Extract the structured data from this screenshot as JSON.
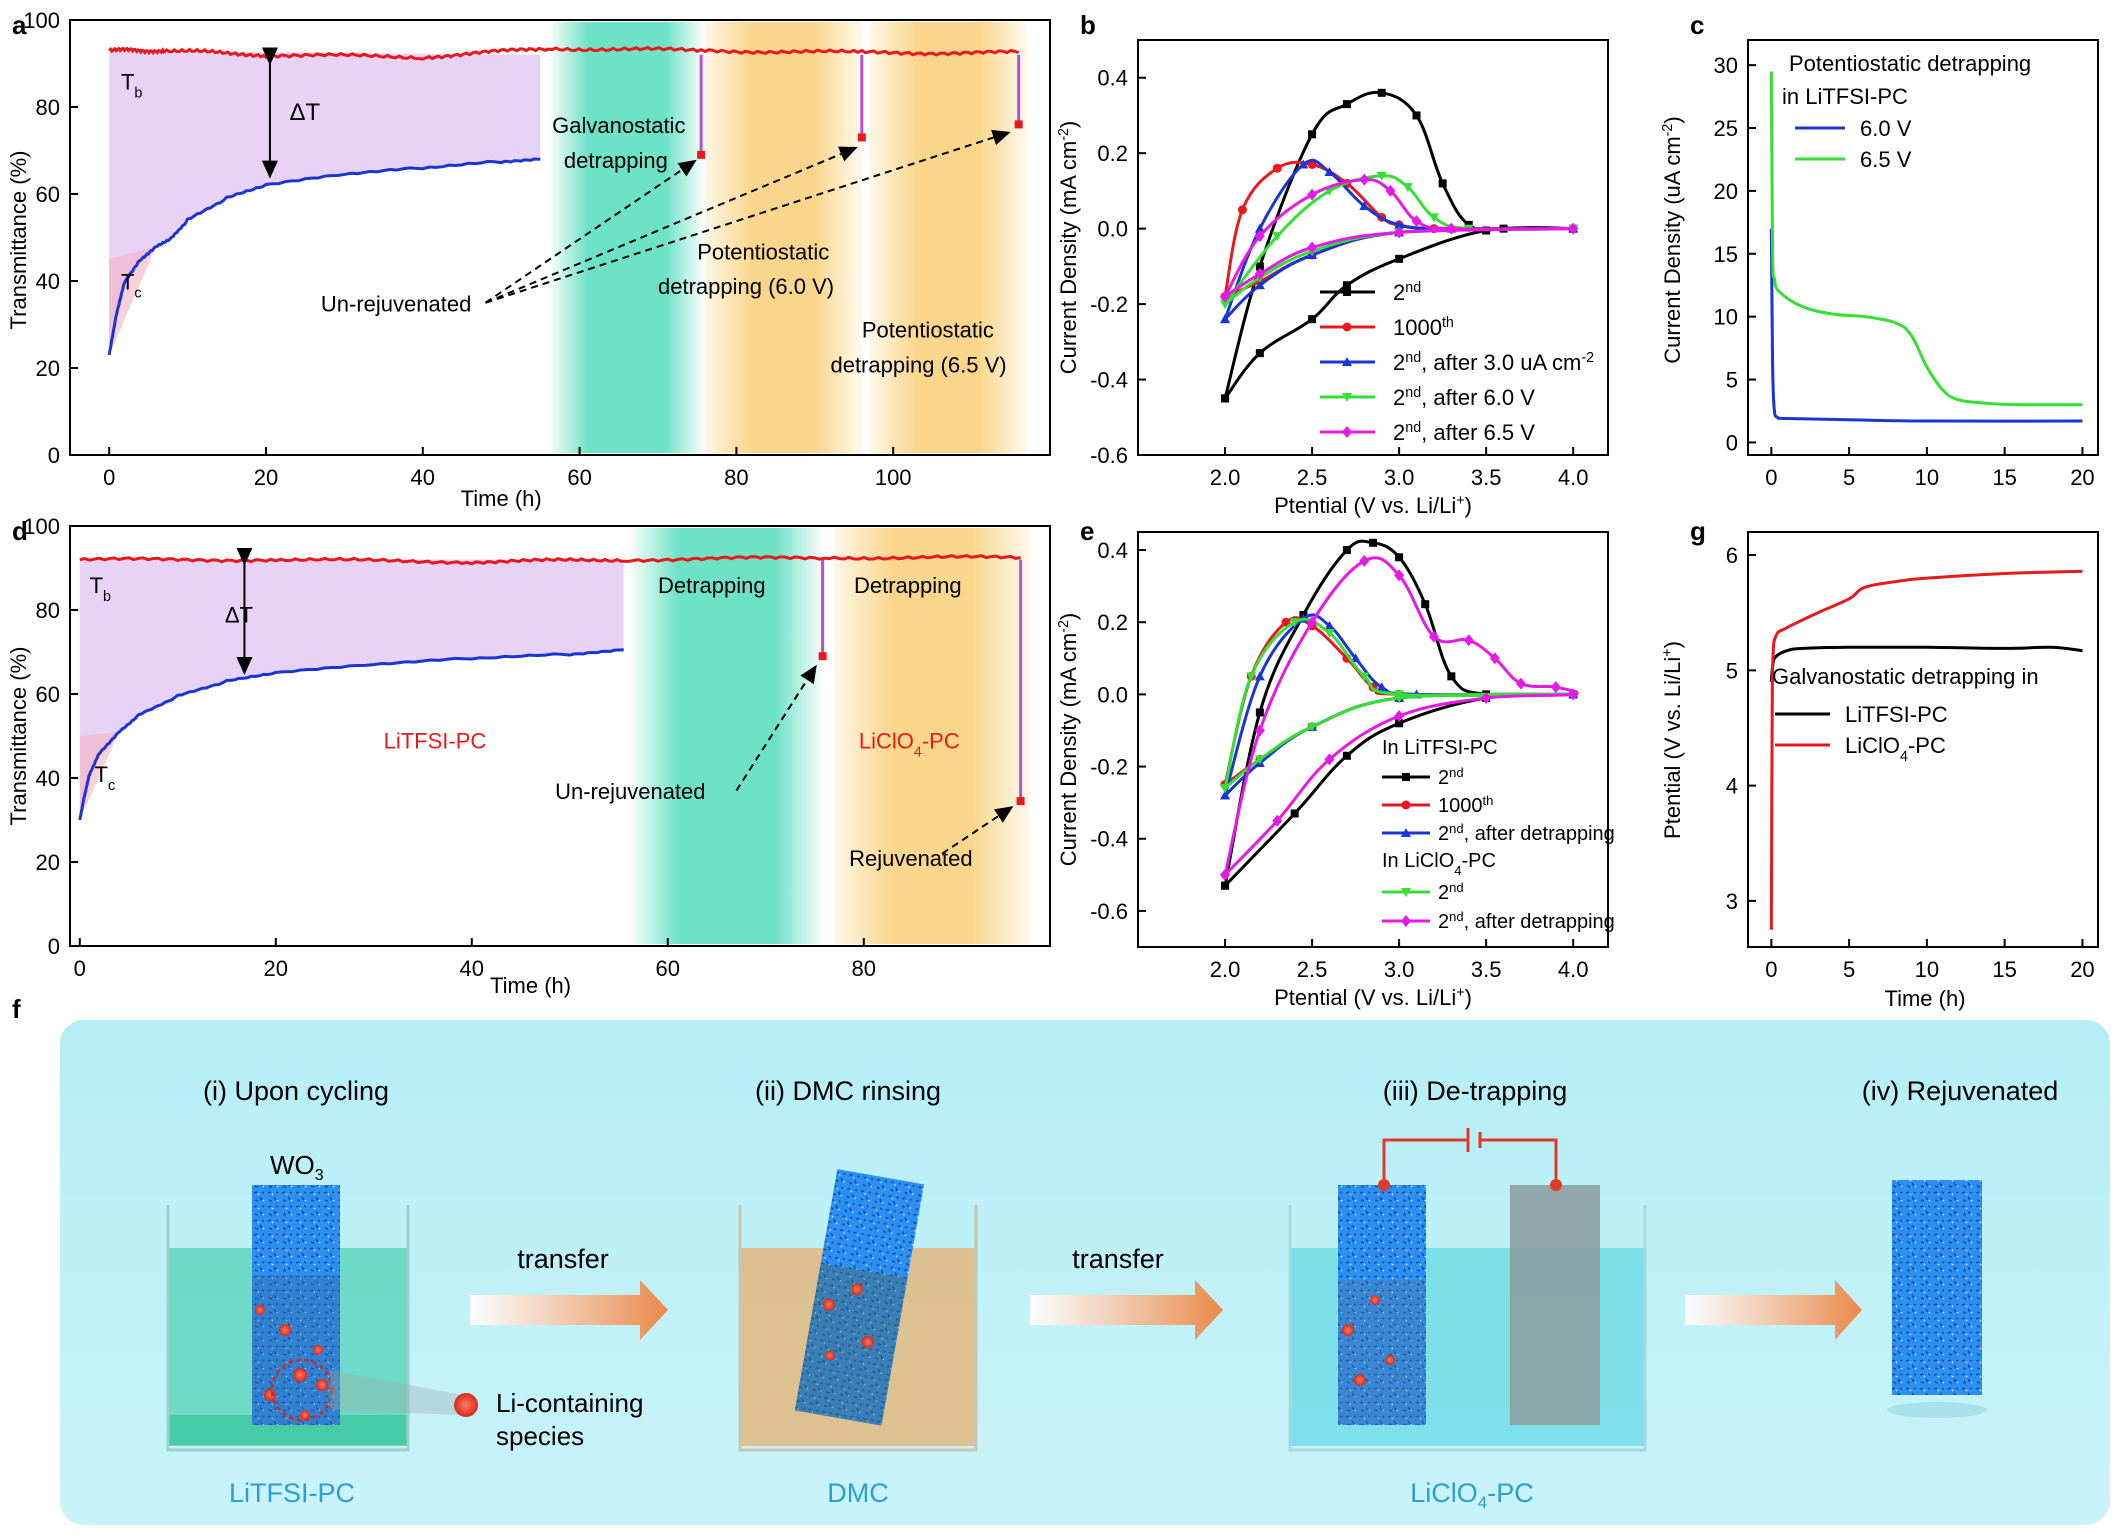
{
  "panel_letters": [
    "a",
    "b",
    "c",
    "d",
    "e",
    "g",
    "f"
  ],
  "chart_data": [
    {
      "panel": "a",
      "type": "line",
      "xlabel": "Time (h)",
      "ylabel": "Transmittance (%)",
      "xlim": [
        -5,
        120
      ],
      "ylim": [
        0,
        100
      ],
      "xticks": [
        0,
        20,
        40,
        60,
        80,
        100
      ],
      "yticks": [
        0,
        20,
        40,
        60,
        80,
        100
      ],
      "series": [
        {
          "name": "Tb",
          "color": "#e8191c",
          "x": [
            0,
            7,
            20,
            40,
            56,
            75.5,
            96,
            116
          ],
          "y": [
            93,
            93,
            92,
            91.5,
            93.5,
            93,
            92.5,
            92.5
          ]
        },
        {
          "name": "Tc",
          "color": "#1a35d6",
          "x": [
            0,
            1,
            2,
            4,
            6,
            8,
            10,
            15,
            20,
            30,
            40,
            50,
            55
          ],
          "y": [
            23,
            33,
            40,
            45,
            48,
            50,
            54,
            59,
            62,
            64.5,
            66,
            67.5,
            68
          ]
        },
        {
          "name": "jump1",
          "color": "#b84fd6",
          "x": [
            75.5,
            75.5
          ],
          "y": [
            92,
            69
          ]
        },
        {
          "name": "jump2",
          "color": "#b84fd6",
          "x": [
            96,
            96
          ],
          "y": [
            92,
            73
          ]
        },
        {
          "name": "jump3",
          "color": "#b84fd6",
          "x": [
            116,
            116
          ],
          "y": [
            92,
            76
          ]
        }
      ],
      "bands": [
        {
          "name": "galvanostatic",
          "color": "#3ed9b4",
          "x": [
            56,
            76
          ]
        },
        {
          "name": "potentiostatic-6.0",
          "color": "#f7c55a",
          "x": [
            76,
            96
          ]
        },
        {
          "name": "potentiostatic-6.5",
          "color": "#f7c55a",
          "x": [
            97,
            117
          ]
        }
      ],
      "labels": {
        "tb": "T",
        "tb_sub": "b",
        "tc": "T",
        "tc_sub": "c",
        "dt": "ΔT",
        "galv": [
          "Galvanostatic",
          "detrapping"
        ],
        "pot60": [
          "Potentiostatic",
          "detrapping (6.0 V)"
        ],
        "pot65": [
          "Potentiostatic",
          "detrapping (6.5 V)"
        ],
        "unrej": "Un-rejuvenated"
      }
    },
    {
      "panel": "b",
      "type": "line",
      "xlabel": "Ptential (V vs. Li/Li",
      "xlabel_sup": "+",
      "xlabel_end": ")",
      "ylabel": "Current Density (mA cm",
      "ylabel_sup": "-2",
      "ylabel_end": ")",
      "xlim": [
        1.5,
        4.2
      ],
      "ylim": [
        -0.6,
        0.5
      ],
      "xticks": [
        2.0,
        2.5,
        3.0,
        3.5,
        4.0
      ],
      "yticks": [
        -0.6,
        -0.4,
        -0.2,
        0.0,
        0.2,
        0.4
      ],
      "series": [
        {
          "name": "2nd",
          "sup": "nd",
          "base": "2",
          "suffix": "",
          "color": "#000000",
          "x": [
            2.0,
            2.2,
            2.5,
            2.7,
            2.9,
            3.1,
            3.25,
            3.4,
            3.6,
            4.0,
            3.5,
            3.0,
            2.7,
            2.5,
            2.2,
            2.0
          ],
          "y": [
            -0.45,
            -0.1,
            0.25,
            0.33,
            0.36,
            0.3,
            0.12,
            0.01,
            0.0,
            0.0,
            -0.005,
            -0.08,
            -0.15,
            -0.24,
            -0.33,
            -0.45
          ]
        },
        {
          "name": "1000th",
          "sup": "th",
          "base": "1000",
          "suffix": "",
          "color": "#e8191c",
          "x": [
            2.0,
            2.1,
            2.3,
            2.5,
            2.7,
            2.9,
            3.0,
            3.2,
            4.0,
            3.0,
            2.5,
            2.2,
            2.0
          ],
          "y": [
            -0.18,
            0.05,
            0.16,
            0.17,
            0.12,
            0.03,
            0.01,
            0.0,
            0.0,
            -0.01,
            -0.07,
            -0.14,
            -0.18
          ]
        },
        {
          "name": "2nd after 3.0 uA",
          "sup": "nd",
          "base": "2",
          "suffix": ", after 3.0 uA cm",
          "suffix_sup": "-2",
          "color": "#1a35d6",
          "x": [
            2.0,
            2.2,
            2.45,
            2.6,
            2.8,
            3.0,
            3.3,
            4.0,
            3.0,
            2.5,
            2.2,
            2.0
          ],
          "y": [
            -0.24,
            0.0,
            0.17,
            0.15,
            0.06,
            0.01,
            0.0,
            0.0,
            -0.01,
            -0.07,
            -0.15,
            -0.24
          ]
        },
        {
          "name": "2nd after 6.0 V",
          "sup": "nd",
          "base": "2",
          "suffix": ", after 6.0 V",
          "color": "#33e033",
          "x": [
            2.0,
            2.3,
            2.6,
            2.9,
            3.05,
            3.2,
            3.4,
            4.0,
            3.0,
            2.5,
            2.2,
            2.0
          ],
          "y": [
            -0.2,
            -0.02,
            0.1,
            0.14,
            0.11,
            0.03,
            0.0,
            0.0,
            -0.01,
            -0.06,
            -0.13,
            -0.2
          ]
        },
        {
          "name": "2nd after 6.5 V",
          "sup": "nd",
          "base": "2",
          "suffix": ", after 6.5 V",
          "color": "#e619e6",
          "x": [
            2.0,
            2.2,
            2.5,
            2.8,
            2.95,
            3.1,
            3.3,
            4.0,
            3.0,
            2.5,
            2.2,
            2.0
          ],
          "y": [
            -0.18,
            -0.02,
            0.09,
            0.13,
            0.1,
            0.02,
            0.0,
            0.0,
            -0.01,
            -0.05,
            -0.12,
            -0.18
          ]
        }
      ]
    },
    {
      "panel": "c",
      "type": "line",
      "xlabel": "",
      "ylabel": "Current Density (uA cm",
      "ylabel_sup": "-2",
      "ylabel_end": ")",
      "xlim": [
        -1.5,
        21
      ],
      "ylim": [
        -1,
        32
      ],
      "xticks": [
        0,
        5,
        10,
        15,
        20
      ],
      "yticks": [
        0,
        5,
        10,
        15,
        20,
        25,
        30
      ],
      "legend_title": [
        "Potentiostatic detrapping",
        "in  LiTFSI-PC"
      ],
      "series": [
        {
          "name": "6.0 V",
          "color": "#1a35d6",
          "x": [
            0,
            0.05,
            0.1,
            0.2,
            0.4,
            1,
            5,
            10,
            20
          ],
          "y": [
            17,
            10,
            5,
            2.5,
            2.0,
            1.9,
            1.8,
            1.7,
            1.7
          ]
        },
        {
          "name": "6.5 V",
          "color": "#33e033",
          "x": [
            0,
            0.05,
            0.1,
            0.2,
            0.5,
            2,
            4,
            6,
            8,
            9,
            10,
            11,
            12,
            14,
            16,
            20
          ],
          "y": [
            29.5,
            20,
            14,
            13,
            12,
            10.8,
            10.2,
            10,
            9.5,
            8.5,
            6,
            4.2,
            3.4,
            3.1,
            3.0,
            3.0
          ]
        }
      ]
    },
    {
      "panel": "d",
      "type": "line",
      "xlabel": "Time (h)",
      "ylabel": "Transmittance (%)",
      "xlim": [
        -1,
        99
      ],
      "ylim": [
        0,
        100
      ],
      "xticks": [
        0,
        20,
        40,
        60,
        80
      ],
      "yticks": [
        0,
        20,
        40,
        60,
        80,
        100
      ],
      "series": [
        {
          "name": "Tb",
          "color": "#e8191c",
          "x": [
            0,
            20,
            40,
            56,
            76,
            96
          ],
          "y": [
            92,
            92,
            91.5,
            92,
            92.5,
            92.5
          ]
        },
        {
          "name": "Tc",
          "color": "#1a35d6",
          "x": [
            0,
            0.5,
            1,
            2,
            4,
            6,
            10,
            15,
            20,
            30,
            40,
            50,
            55.5
          ],
          "y": [
            30,
            36,
            41,
            46,
            51,
            55,
            59.5,
            63,
            65,
            67,
            68.5,
            69.5,
            70.5
          ]
        },
        {
          "name": "jump1",
          "color": "#b84fd6",
          "x": [
            75.8,
            75.8
          ],
          "y": [
            92,
            69
          ]
        },
        {
          "name": "jump2",
          "color": "#b84fd6",
          "x": [
            96,
            96
          ],
          "y": [
            92,
            34.5
          ]
        }
      ],
      "bands": [
        {
          "name": "detrapping-1",
          "color": "#3ed9b4",
          "x": [
            56,
            76
          ]
        },
        {
          "name": "detrapping-2",
          "color": "#f7c55a",
          "x": [
            77,
            97
          ]
        }
      ],
      "labels": {
        "tb": "T",
        "tb_sub": "b",
        "tc": "T",
        "tc_sub": "c",
        "dt": "ΔT",
        "det1": "Detrapping",
        "det2": "Detrapping",
        "litfsi": "LiTFSI-PC",
        "liclo4": "LiClO",
        "liclo4_sub": "4",
        "liclo4_end": "-PC",
        "unrej": "Un-rejuvenated",
        "rej": "Rejuvenated"
      }
    },
    {
      "panel": "e",
      "type": "line",
      "xlabel": "Ptential (V vs. Li/Li",
      "xlabel_sup": "+",
      "xlabel_end": ")",
      "ylabel": "Current Density (mA cm",
      "ylabel_sup": "-2",
      "ylabel_end": ")",
      "xlim": [
        1.5,
        4.2
      ],
      "ylim": [
        -0.7,
        0.45
      ],
      "xticks": [
        2.0,
        2.5,
        3.0,
        3.5,
        4.0
      ],
      "yticks": [
        -0.6,
        -0.4,
        -0.2,
        0.0,
        0.2,
        0.4
      ],
      "legend_groups": [
        "In LiTFSI-PC",
        "In LiClO4-PC"
      ],
      "series": [
        {
          "name": "2nd LiTFSI",
          "sup": "nd",
          "base": "2",
          "suffix": "",
          "color": "#000000",
          "x": [
            2.0,
            2.2,
            2.45,
            2.7,
            2.85,
            3.0,
            3.15,
            3.3,
            3.5,
            4.0,
            3.5,
            3.0,
            2.7,
            2.4,
            2.0
          ],
          "y": [
            -0.53,
            -0.05,
            0.22,
            0.4,
            0.42,
            0.38,
            0.25,
            0.05,
            0.0,
            0.0,
            -0.01,
            -0.08,
            -0.17,
            -0.33,
            -0.53
          ]
        },
        {
          "name": "1000th LiTFSI",
          "sup": "th",
          "base": "1000",
          "suffix": "",
          "color": "#e8191c",
          "x": [
            2.0,
            2.15,
            2.35,
            2.5,
            2.7,
            2.85,
            3.0,
            4.0,
            3.0,
            2.5,
            2.2,
            2.0
          ],
          "y": [
            -0.25,
            0.05,
            0.2,
            0.19,
            0.1,
            0.02,
            0.0,
            0.0,
            -0.01,
            -0.09,
            -0.18,
            -0.25
          ]
        },
        {
          "name": "2nd after detrapping LiTFSI",
          "sup": "nd",
          "base": "2",
          "suffix": ", after detrapping",
          "color": "#1a35d6",
          "x": [
            2.0,
            2.2,
            2.45,
            2.6,
            2.75,
            2.9,
            3.1,
            4.0,
            3.0,
            2.5,
            2.2,
            2.0
          ],
          "y": [
            -0.28,
            0.05,
            0.21,
            0.19,
            0.1,
            0.02,
            0.0,
            0.0,
            -0.01,
            -0.09,
            -0.19,
            -0.28
          ]
        },
        {
          "name": "2nd LiClO4",
          "sup": "nd",
          "base": "2",
          "suffix": "",
          "color": "#33e033",
          "x": [
            2.0,
            2.15,
            2.4,
            2.6,
            2.8,
            3.0,
            4.0,
            3.0,
            2.5,
            2.2,
            2.0
          ],
          "y": [
            -0.26,
            0.05,
            0.2,
            0.17,
            0.05,
            0.0,
            0.0,
            -0.01,
            -0.09,
            -0.18,
            -0.26
          ]
        },
        {
          "name": "2nd after detrapping LiClO4",
          "sup": "nd",
          "base": "2",
          "suffix": ", after detrapping",
          "color": "#e619e6",
          "x": [
            2.0,
            2.2,
            2.5,
            2.8,
            3.0,
            3.2,
            3.4,
            3.55,
            3.7,
            3.9,
            4.0,
            3.5,
            3.0,
            2.6,
            2.3,
            2.0
          ],
          "y": [
            -0.5,
            -0.1,
            0.2,
            0.37,
            0.33,
            0.16,
            0.15,
            0.1,
            0.03,
            0.02,
            0.0,
            -0.01,
            -0.06,
            -0.18,
            -0.35,
            -0.5
          ]
        }
      ]
    },
    {
      "panel": "g",
      "type": "line",
      "xlabel": "Time (h)",
      "ylabel": "Ptential (V vs. Li/Li",
      "ylabel_sup": "+",
      "ylabel_end": ")",
      "xlim": [
        -1.5,
        21
      ],
      "ylim": [
        2.6,
        6.2
      ],
      "xticks": [
        0,
        5,
        10,
        15,
        20
      ],
      "yticks": [
        3,
        4,
        5,
        6
      ],
      "legend_title": [
        "Galvanostatic detrapping in"
      ],
      "series": [
        {
          "name": "LiTFSI-PC",
          "color": "#000000",
          "x": [
            0,
            0.1,
            0.3,
            1,
            2,
            5,
            10,
            15,
            18,
            20
          ],
          "y": [
            4.9,
            5.05,
            5.12,
            5.17,
            5.19,
            5.2,
            5.2,
            5.19,
            5.2,
            5.17
          ]
        },
        {
          "name": "LiClO4-PC",
          "sub": "4",
          "color": "#e8191c",
          "x": [
            0,
            0.02,
            0.05,
            0.1,
            0.3,
            1,
            3,
            5,
            6,
            8,
            10,
            15,
            20
          ],
          "y": [
            2.75,
            3.5,
            4.5,
            5.1,
            5.3,
            5.37,
            5.5,
            5.62,
            5.72,
            5.77,
            5.8,
            5.84,
            5.86
          ]
        }
      ]
    }
  ],
  "schematic": {
    "steps": [
      "(i) Upon cycling",
      "(ii) DMC rinsing",
      "(iii) De-trapping",
      "(iv) Rejuvenated"
    ],
    "arrows": [
      "transfer",
      "transfer"
    ],
    "film": "WO",
    "film_sub": "3",
    "solutions": [
      "LiTFSI-PC",
      "DMC",
      "LiClO"
    ],
    "solution3_sub": "4",
    "solution3_end": "-PC",
    "legend": [
      "Li-containing",
      "species"
    ],
    "colors": {
      "bg": "#b6eef7",
      "litfsi": "#53d1b6",
      "dmc": "#e6b06c",
      "liclo4": "#5fd9e3",
      "film": "#1f7fe0",
      "particle": "#e6392a"
    }
  }
}
